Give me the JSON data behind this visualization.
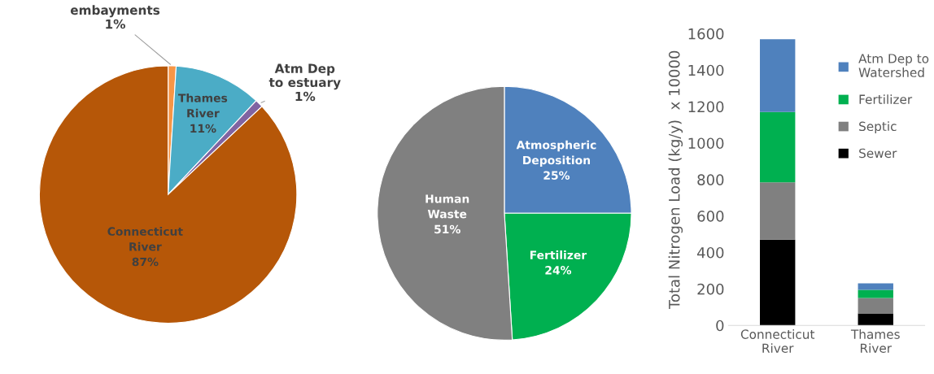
{
  "chart_data": [
    {
      "type": "pie",
      "categories": [
        "embayments",
        "Thames\nRiver",
        "Atm Dep\nto estuary",
        "Connecticut\nRiver"
      ],
      "values": [
        1,
        11,
        1,
        87
      ],
      "value_labels": [
        "1%",
        "11%",
        "1%",
        "87%"
      ],
      "colors": [
        "#f79646",
        "#4bacc6",
        "#8064a2",
        "#b65708"
      ]
    },
    {
      "type": "pie",
      "categories": [
        "Atmospheric\nDeposition",
        "Fertilizer",
        "Human\nWaste"
      ],
      "values": [
        25,
        24,
        51
      ],
      "value_labels": [
        "25%",
        "24%",
        "51%"
      ],
      "colors": [
        "#4f81bd",
        "#00b050",
        "#808080"
      ]
    },
    {
      "type": "bar",
      "stacked": true,
      "categories": [
        "Connecticut\nRiver",
        "Thames\nRiver"
      ],
      "ylabel": "Total Nitrogen Load (kg/y)  x 10000",
      "ylim": [
        0,
        1600
      ],
      "yticks": [
        0,
        200,
        400,
        600,
        800,
        1000,
        1200,
        1400,
        1600
      ],
      "grid": false,
      "legend": "right",
      "series": [
        {
          "name": "Sewer",
          "color": "#000000",
          "values": [
            470,
            65
          ]
        },
        {
          "name": "Septic",
          "color": "#808080",
          "values": [
            315,
            85
          ]
        },
        {
          "name": "Fertilizer",
          "color": "#00b050",
          "values": [
            385,
            45
          ]
        },
        {
          "name": "Atm Dep to\nWatershed",
          "color": "#4f81bd",
          "values": [
            400,
            35
          ]
        }
      ]
    }
  ]
}
